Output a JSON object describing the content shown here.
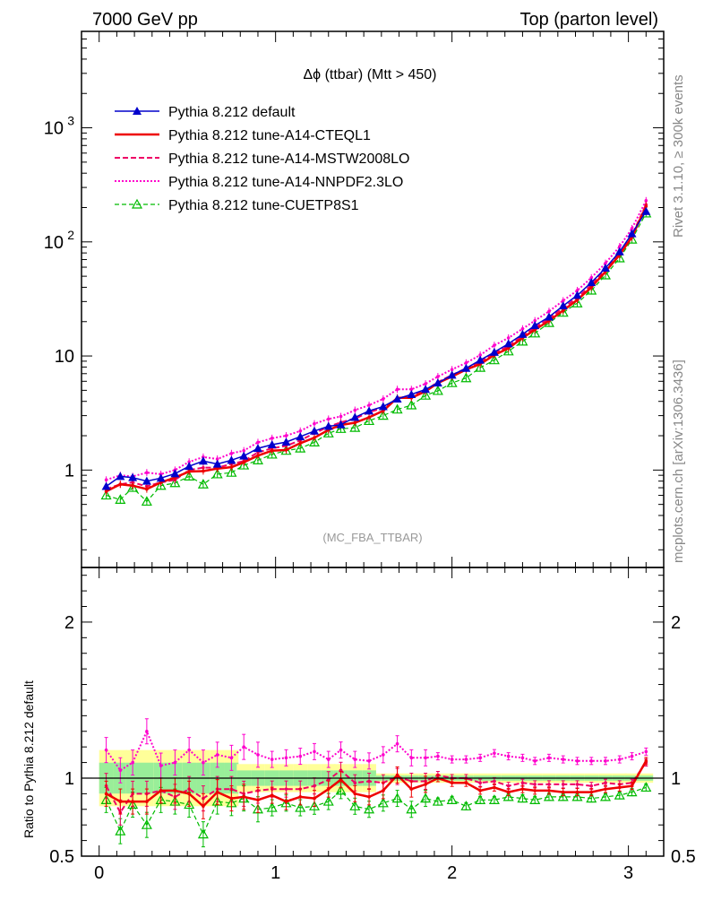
{
  "header": {
    "left": "7000 GeV pp",
    "right": "Top (parton level)"
  },
  "side_labels": {
    "rivet": "Rivet 3.1.10, ≥ 300k events",
    "mcplots": "mcplots.cern.ch [arXiv:1306.3436]"
  },
  "chart_data": {
    "type": "line",
    "title": "Δϕ (ttbar) (Mtt > 450)",
    "analysis_tag": "(MC_FBA_TTBAR)",
    "xlim": [
      -0.1,
      3.2
    ],
    "x_ticks": [
      "0",
      "1",
      "2",
      "3"
    ],
    "main": {
      "yscale": "log",
      "ylim": [
        0.14,
        7000
      ],
      "y_ticks": [
        "1",
        "10",
        "10^2",
        "10^3"
      ]
    },
    "ratio": {
      "ylabel": "Ratio to Pythia 8.212 default",
      "ylim": [
        0.5,
        2.35
      ],
      "y_ticks": [
        "0.5",
        "1",
        "2"
      ]
    },
    "legend": {
      "placement": "top-left"
    },
    "x": [
      0.04,
      0.12,
      0.19,
      0.27,
      0.35,
      0.43,
      0.51,
      0.59,
      0.67,
      0.75,
      0.82,
      0.9,
      0.98,
      1.06,
      1.14,
      1.22,
      1.3,
      1.37,
      1.45,
      1.53,
      1.61,
      1.69,
      1.77,
      1.85,
      1.92,
      2.0,
      2.08,
      2.16,
      2.24,
      2.32,
      2.4,
      2.47,
      2.55,
      2.63,
      2.71,
      2.79,
      2.87,
      2.95,
      3.02,
      3.1
    ],
    "series": [
      {
        "name": "Pythia 8.212 default",
        "color": "#0000cc",
        "style": "solid-triangle",
        "values": [
          0.72,
          0.88,
          0.86,
          0.8,
          0.85,
          0.93,
          1.08,
          1.2,
          1.13,
          1.22,
          1.33,
          1.55,
          1.67,
          1.76,
          1.96,
          2.2,
          2.42,
          2.5,
          2.9,
          3.3,
          3.6,
          4.2,
          4.6,
          5.1,
          5.8,
          6.8,
          7.8,
          9.2,
          10.8,
          12.8,
          15.5,
          18.5,
          22.0,
          27.5,
          34.0,
          44.0,
          59.0,
          82.0,
          118.0,
          185.0
        ],
        "ratio": [
          1.0,
          1.0,
          1.0,
          1.0,
          1.0,
          1.0,
          1.0,
          1.0,
          1.0,
          1.0,
          1.0,
          1.0,
          1.0,
          1.0,
          1.0,
          1.0,
          1.0,
          1.0,
          1.0,
          1.0,
          1.0,
          1.0,
          1.0,
          1.0,
          1.0,
          1.0,
          1.0,
          1.0,
          1.0,
          1.0,
          1.0,
          1.0,
          1.0,
          1.0,
          1.0,
          1.0,
          1.0,
          1.0,
          1.0,
          1.0
        ]
      },
      {
        "name": "Pythia 8.212 tune-A14-CTEQL1",
        "color": "#ee0000",
        "style": "solid-thick",
        "values": [
          0.65,
          0.75,
          0.73,
          0.68,
          0.78,
          0.86,
          0.97,
          0.98,
          1.03,
          1.06,
          1.17,
          1.34,
          1.48,
          1.5,
          1.72,
          1.92,
          2.25,
          2.48,
          2.6,
          2.9,
          3.3,
          4.3,
          4.3,
          4.9,
          5.8,
          6.6,
          7.6,
          8.5,
          10.2,
          11.7,
          14.4,
          17.0,
          20.3,
          25.0,
          31.0,
          40.0,
          55.0,
          77.0,
          110.0,
          205.0
        ],
        "ratio": [
          0.9,
          0.85,
          0.85,
          0.85,
          0.92,
          0.92,
          0.9,
          0.82,
          0.91,
          0.87,
          0.88,
          0.86,
          0.89,
          0.85,
          0.88,
          0.87,
          0.93,
          0.99,
          0.9,
          0.88,
          0.92,
          1.02,
          0.93,
          0.96,
          1.0,
          0.97,
          0.97,
          0.92,
          0.94,
          0.91,
          0.93,
          0.92,
          0.92,
          0.91,
          0.91,
          0.91,
          0.93,
          0.94,
          0.95,
          1.11
        ]
      },
      {
        "name": "Pythia 8.212 tune-A14-MSTW2008LO",
        "color": "#ee0066",
        "style": "dashed",
        "values": [
          0.68,
          0.75,
          0.78,
          0.72,
          0.78,
          0.82,
          1.0,
          1.05,
          1.05,
          1.13,
          1.2,
          1.43,
          1.55,
          1.63,
          1.82,
          2.1,
          2.4,
          2.62,
          2.82,
          3.22,
          3.5,
          4.25,
          4.5,
          5.0,
          5.9,
          6.8,
          7.8,
          8.9,
          10.6,
          12.2,
          15.0,
          17.8,
          21.2,
          26.4,
          32.5,
          41.8,
          57.0,
          79.0,
          114.0,
          212.0
        ],
        "ratio": [
          0.95,
          0.78,
          0.9,
          0.9,
          0.92,
          0.88,
          0.93,
          0.87,
          0.93,
          0.93,
          0.9,
          0.92,
          0.93,
          0.93,
          0.93,
          0.95,
          0.99,
          1.05,
          0.97,
          0.98,
          0.97,
          1.01,
          0.98,
          0.98,
          1.02,
          1.0,
          1.0,
          0.97,
          0.98,
          0.95,
          0.97,
          0.96,
          0.96,
          0.96,
          0.96,
          0.95,
          0.97,
          0.96,
          0.97,
          1.1
        ]
      },
      {
        "name": "Pythia 8.212 tune-A14-NNPDF2.3LO",
        "color": "#ff00cc",
        "style": "dotted",
        "values": [
          0.82,
          0.9,
          0.88,
          0.95,
          0.92,
          1.0,
          1.18,
          1.3,
          1.25,
          1.4,
          1.48,
          1.75,
          1.9,
          2.0,
          2.2,
          2.55,
          2.8,
          2.95,
          3.35,
          3.7,
          4.2,
          5.1,
          5.1,
          5.7,
          6.6,
          7.6,
          8.7,
          10.2,
          12.4,
          14.4,
          17.3,
          20.4,
          24.6,
          30.5,
          37.5,
          48.5,
          65.0,
          91.0,
          131.0,
          230.0
        ],
        "ratio": [
          1.18,
          1.05,
          1.1,
          1.3,
          1.08,
          1.1,
          1.18,
          1.1,
          1.15,
          1.13,
          1.2,
          1.15,
          1.12,
          1.13,
          1.14,
          1.17,
          1.12,
          1.18,
          1.12,
          1.11,
          1.15,
          1.22,
          1.13,
          1.13,
          1.14,
          1.12,
          1.12,
          1.13,
          1.16,
          1.14,
          1.13,
          1.11,
          1.13,
          1.12,
          1.11,
          1.11,
          1.11,
          1.12,
          1.14,
          1.17
        ]
      },
      {
        "name": "Pythia 8.212 tune-CUETP8S1",
        "color": "#00bb00",
        "style": "dashed-open-triangle",
        "values": [
          0.6,
          0.55,
          0.7,
          0.53,
          0.73,
          0.77,
          0.88,
          0.75,
          0.92,
          0.95,
          1.1,
          1.22,
          1.37,
          1.48,
          1.55,
          1.75,
          2.1,
          2.3,
          2.35,
          2.7,
          3.0,
          3.4,
          3.7,
          4.5,
          4.95,
          5.8,
          6.4,
          7.9,
          9.2,
          11.0,
          13.4,
          15.8,
          19.5,
          24.0,
          29.0,
          37.5,
          51.0,
          72.0,
          105.0,
          178.0
        ],
        "ratio": [
          0.86,
          0.66,
          0.83,
          0.7,
          0.86,
          0.85,
          0.83,
          0.64,
          0.85,
          0.84,
          0.87,
          0.8,
          0.81,
          0.84,
          0.81,
          0.82,
          0.85,
          0.92,
          0.82,
          0.8,
          0.84,
          0.87,
          0.8,
          0.87,
          0.85,
          0.86,
          0.82,
          0.86,
          0.86,
          0.88,
          0.87,
          0.86,
          0.88,
          0.88,
          0.88,
          0.87,
          0.88,
          0.89,
          0.91,
          0.94
        ]
      }
    ]
  }
}
